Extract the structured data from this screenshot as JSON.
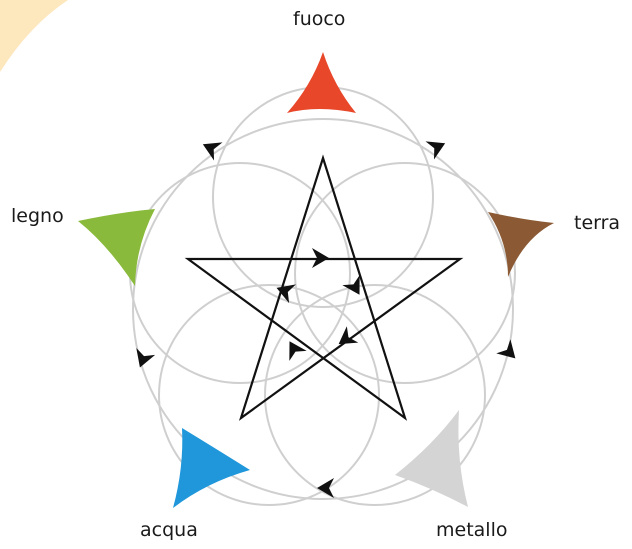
{
  "diagram": {
    "elements": [
      {
        "id": "fuoco",
        "label": "fuoco",
        "color": "#e8472a"
      },
      {
        "id": "terra",
        "label": "terra",
        "color": "#8b5a34"
      },
      {
        "id": "metallo",
        "label": "metallo",
        "color": "#d4d4d4"
      },
      {
        "id": "acqua",
        "label": "acqua",
        "color": "#1f97da"
      },
      {
        "id": "legno",
        "label": "legno",
        "color": "#8aba3c"
      }
    ],
    "colors": {
      "circles": "#cfcfcf",
      "star": "#111111",
      "arrows": "#111111",
      "corner_accent": "#fde7bd"
    },
    "icons": {
      "element_marker": "curved-triangle-icon",
      "cycle_arrow": "chevron-arrow-icon"
    }
  }
}
